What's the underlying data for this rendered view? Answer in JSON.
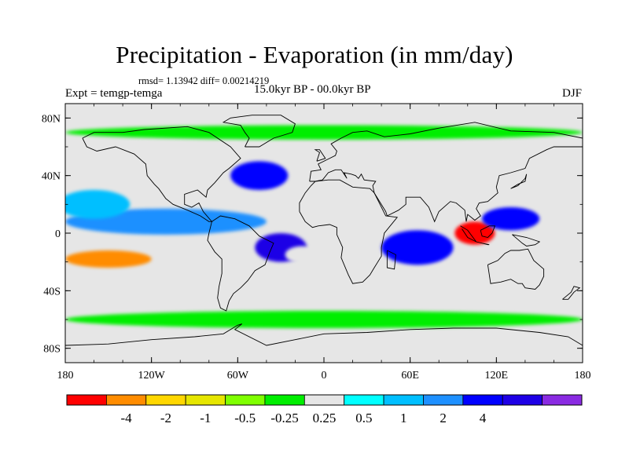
{
  "title": "Precipitation - Evaporation (in mm/day)",
  "stats": "rmsd= 1.13942 diff= 0.00214219",
  "experiment": "Expt = temgp-temga",
  "period": "15.0kyr BP - 00.0kyr BP",
  "season": "DJF",
  "chart_data": {
    "type": "heatmap",
    "projection": "cylindrical-equidistant",
    "xlim": [
      -180,
      180
    ],
    "ylim": [
      -90,
      90
    ],
    "x_ticks": [
      {
        "value": -180,
        "label": "180"
      },
      {
        "value": -120,
        "label": "120W"
      },
      {
        "value": -60,
        "label": "60W"
      },
      {
        "value": 0,
        "label": "0"
      },
      {
        "value": 60,
        "label": "60E"
      },
      {
        "value": 120,
        "label": "120E"
      },
      {
        "value": 180,
        "label": "180"
      }
    ],
    "y_ticks": [
      {
        "value": 80,
        "label": "80N"
      },
      {
        "value": 40,
        "label": "40N"
      },
      {
        "value": 0,
        "label": "0"
      },
      {
        "value": -40,
        "label": "40S"
      },
      {
        "value": -80,
        "label": "80S"
      }
    ],
    "colorbar": {
      "colors": [
        "#ff0000",
        "#ff8c00",
        "#ffd700",
        "#e6e600",
        "#7fff00",
        "#00ee00",
        "#e6e6e6",
        "#00ffff",
        "#00bfff",
        "#1e90ff",
        "#0000ff",
        "#1e00e6",
        "#8a2be2"
      ],
      "labels": [
        "-4",
        "-2",
        "-1",
        "-0.5",
        "-0.25",
        "0.25",
        "0.5",
        "1",
        "2",
        "4"
      ],
      "boundaries": [
        -4,
        -2,
        -1,
        -0.5,
        -0.25,
        0.25,
        0.5,
        1,
        2,
        4
      ]
    },
    "background_color": "#e6e6e6",
    "regions": [
      {
        "name": "equatorial-pacific-wet",
        "lon": -110,
        "lat": 8,
        "rx": 70,
        "ry": 9,
        "level": 9
      },
      {
        "name": "south-pacific-dry",
        "lon": -150,
        "lat": -18,
        "rx": 30,
        "ry": 6,
        "level": 1
      },
      {
        "name": "north-pacific-band",
        "lon": -160,
        "lat": 20,
        "rx": 25,
        "ry": 10,
        "level": 8
      },
      {
        "name": "north-atlantic-wet",
        "lon": -45,
        "lat": 40,
        "rx": 20,
        "ry": 10,
        "level": 10
      },
      {
        "name": "south-atlantic-wet",
        "lon": -30,
        "lat": -10,
        "rx": 18,
        "ry": 10,
        "level": 11
      },
      {
        "name": "south-atlantic-dry",
        "lon": -15,
        "lat": -15,
        "rx": 12,
        "ry": 6,
        "level": 6
      },
      {
        "name": "indian-ocean-wet",
        "lon": 65,
        "lat": -10,
        "rx": 25,
        "ry": 12,
        "level": 10
      },
      {
        "name": "maritime-continent-dry",
        "lon": 105,
        "lat": 0,
        "rx": 14,
        "ry": 8,
        "level": 0
      },
      {
        "name": "west-pacific-wet",
        "lon": 130,
        "lat": 10,
        "rx": 20,
        "ry": 8,
        "level": 10
      },
      {
        "name": "south-ocean-band",
        "lon": 0,
        "lat": -60,
        "rx": 180,
        "ry": 6,
        "level": 5
      },
      {
        "name": "northern-band",
        "lon": 0,
        "lat": 70,
        "rx": 180,
        "ry": 5,
        "level": 5
      }
    ]
  }
}
